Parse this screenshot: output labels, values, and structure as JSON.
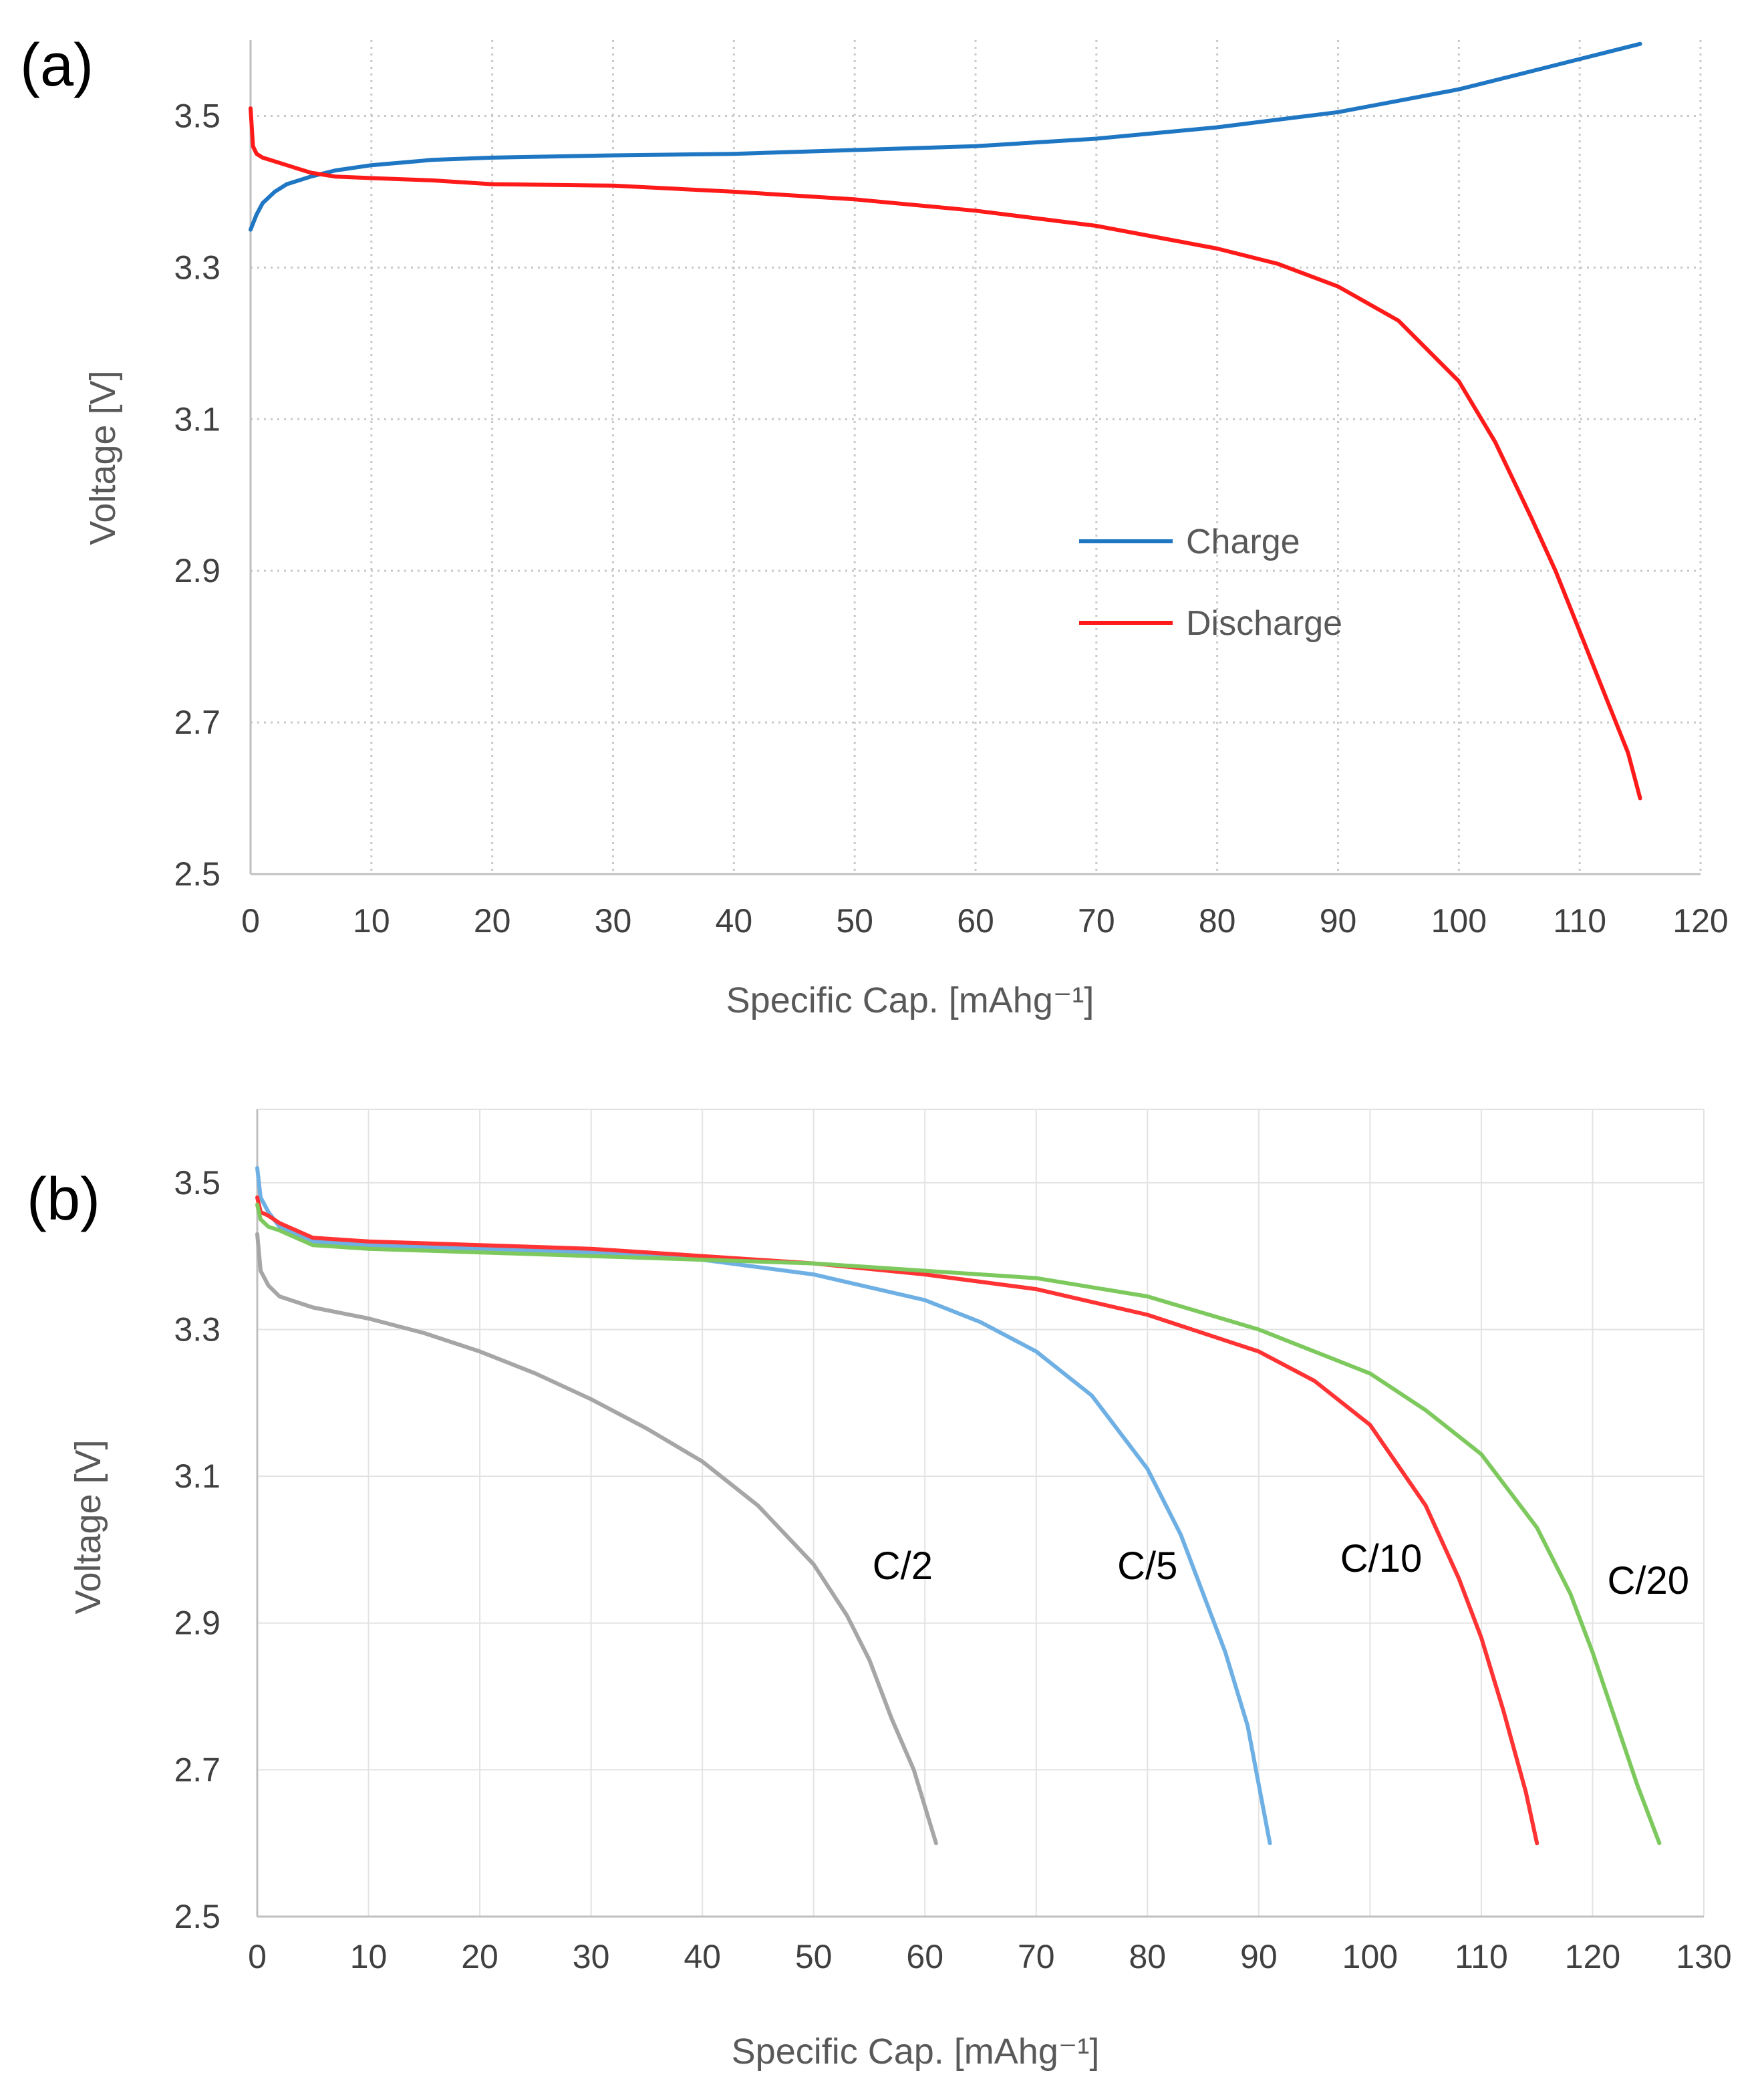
{
  "chart_data": [
    {
      "panel": "(a)",
      "type": "line",
      "xlabel": "Specific Cap. [mAhg⁻¹]",
      "ylabel": "Voltage [V]",
      "xlim": [
        0,
        120
      ],
      "ylim": [
        2.5,
        3.6
      ],
      "xticks": [
        "0",
        "10",
        "20",
        "30",
        "40",
        "50",
        "60",
        "70",
        "80",
        "90",
        "100",
        "110",
        "120"
      ],
      "yticks": [
        "2.5",
        "2.7",
        "2.9",
        "3.1",
        "3.3",
        "3.5"
      ],
      "grid": "dotted",
      "legend_position": "center-right",
      "series": [
        {
          "name": "Charge",
          "color": "#1f77c4",
          "x": [
            0,
            0.5,
            1,
            2,
            3,
            5,
            7,
            10,
            15,
            20,
            30,
            40,
            50,
            60,
            70,
            80,
            85,
            90,
            95,
            100,
            105,
            110,
            115
          ],
          "y": [
            3.35,
            3.37,
            3.385,
            3.4,
            3.41,
            3.42,
            3.428,
            3.435,
            3.442,
            3.445,
            3.448,
            3.45,
            3.455,
            3.46,
            3.47,
            3.485,
            3.495,
            3.505,
            3.52,
            3.535,
            3.555,
            3.575,
            3.595
          ]
        },
        {
          "name": "Discharge",
          "color": "#ff1a1a",
          "x": [
            0,
            0.2,
            0.5,
            1,
            2,
            3,
            5,
            7,
            10,
            15,
            20,
            30,
            40,
            50,
            60,
            70,
            75,
            80,
            85,
            90,
            95,
            100,
            103,
            106,
            108,
            110,
            112,
            114,
            115
          ],
          "y": [
            3.51,
            3.46,
            3.45,
            3.445,
            3.44,
            3.435,
            3.425,
            3.42,
            3.418,
            3.415,
            3.41,
            3.408,
            3.4,
            3.39,
            3.375,
            3.355,
            3.34,
            3.325,
            3.305,
            3.275,
            3.23,
            3.15,
            3.07,
            2.97,
            2.9,
            2.82,
            2.74,
            2.66,
            2.6
          ]
        }
      ]
    },
    {
      "panel": "(b)",
      "type": "line",
      "xlabel": "Specific Cap. [mAhg⁻¹]",
      "ylabel": "Voltage [V]",
      "xlim": [
        0,
        130
      ],
      "ylim": [
        2.5,
        3.6
      ],
      "xticks": [
        "0",
        "10",
        "20",
        "30",
        "40",
        "50",
        "60",
        "70",
        "80",
        "90",
        "100",
        "110",
        "120",
        "130"
      ],
      "yticks": [
        "2.5",
        "2.7",
        "2.9",
        "3.1",
        "3.3",
        "3.5"
      ],
      "grid": "solid",
      "series": [
        {
          "name": "C/2",
          "color": "#a6a6a6",
          "x": [
            0,
            0.3,
            1,
            2,
            5,
            10,
            15,
            20,
            25,
            30,
            35,
            40,
            45,
            50,
            53,
            55,
            57,
            59,
            60,
            61
          ],
          "y": [
            3.43,
            3.38,
            3.36,
            3.345,
            3.33,
            3.315,
            3.295,
            3.27,
            3.24,
            3.205,
            3.165,
            3.12,
            3.06,
            2.98,
            2.91,
            2.85,
            2.77,
            2.7,
            2.65,
            2.6
          ]
        },
        {
          "name": "C/5",
          "color": "#6fb0e4",
          "x": [
            0,
            0.3,
            1,
            2,
            5,
            10,
            20,
            30,
            40,
            50,
            60,
            65,
            70,
            75,
            80,
            83,
            85,
            87,
            89,
            90,
            91
          ],
          "y": [
            3.52,
            3.48,
            3.46,
            3.44,
            3.42,
            3.415,
            3.41,
            3.405,
            3.395,
            3.375,
            3.34,
            3.31,
            3.27,
            3.21,
            3.11,
            3.02,
            2.94,
            2.86,
            2.76,
            2.68,
            2.6
          ]
        },
        {
          "name": "C/10",
          "color": "#ff3333",
          "x": [
            0,
            0.3,
            1,
            2,
            5,
            10,
            20,
            30,
            40,
            50,
            60,
            70,
            80,
            90,
            95,
            100,
            105,
            108,
            110,
            112,
            114,
            115
          ],
          "y": [
            3.48,
            3.46,
            3.455,
            3.445,
            3.425,
            3.42,
            3.415,
            3.41,
            3.4,
            3.39,
            3.375,
            3.355,
            3.32,
            3.27,
            3.23,
            3.17,
            3.06,
            2.96,
            2.88,
            2.78,
            2.67,
            2.6
          ]
        },
        {
          "name": "C/20",
          "color": "#7dc95e",
          "x": [
            0,
            0.3,
            1,
            2,
            5,
            10,
            20,
            30,
            40,
            50,
            60,
            70,
            80,
            90,
            100,
            105,
            110,
            115,
            118,
            120,
            122,
            124,
            126
          ],
          "y": [
            3.47,
            3.45,
            3.44,
            3.435,
            3.415,
            3.41,
            3.405,
            3.4,
            3.395,
            3.39,
            3.38,
            3.37,
            3.345,
            3.3,
            3.24,
            3.19,
            3.13,
            3.03,
            2.94,
            2.86,
            2.77,
            2.68,
            2.6
          ]
        }
      ],
      "annotations": [
        {
          "text": "C/2",
          "x": 58,
          "y": 2.96
        },
        {
          "text": "C/5",
          "x": 80,
          "y": 2.96
        },
        {
          "text": "C/10",
          "x": 101,
          "y": 2.97
        },
        {
          "text": "C/20",
          "x": 125,
          "y": 2.94
        }
      ]
    }
  ]
}
